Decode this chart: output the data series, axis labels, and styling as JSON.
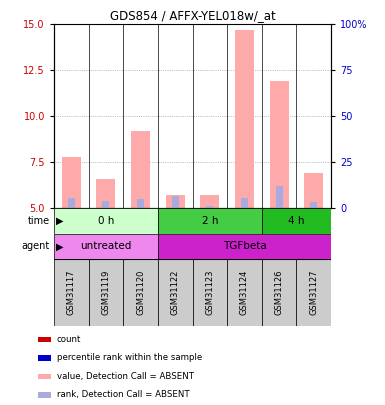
{
  "title": "GDS854 / AFFX-YEL018w/_at",
  "samples": [
    "GSM31117",
    "GSM31119",
    "GSM31120",
    "GSM31122",
    "GSM31123",
    "GSM31124",
    "GSM31126",
    "GSM31127"
  ],
  "pink_bar_tops": [
    7.8,
    6.6,
    9.2,
    5.7,
    5.7,
    14.7,
    11.9,
    6.9
  ],
  "pink_bar_bottoms": [
    5.0,
    5.0,
    5.0,
    5.0,
    5.0,
    5.0,
    5.0,
    5.0
  ],
  "blue_bar_tops": [
    5.55,
    5.4,
    5.5,
    5.65,
    5.1,
    5.55,
    6.2,
    5.35
  ],
  "blue_bar_bottoms": [
    5.0,
    5.0,
    5.0,
    5.0,
    5.0,
    5.0,
    5.0,
    5.0
  ],
  "ylim": [
    5.0,
    15.0
  ],
  "yticks_left": [
    5,
    7.5,
    10,
    12.5,
    15
  ],
  "yticks_right_labels": [
    "0",
    "25",
    "50",
    "75",
    "100%"
  ],
  "ylabel_left_color": "#cc0000",
  "ylabel_right_color": "#0000cc",
  "time_groups": [
    {
      "label": "0 h",
      "start": 0,
      "end": 3,
      "color": "#ccffcc"
    },
    {
      "label": "2 h",
      "start": 3,
      "end": 6,
      "color": "#44cc44"
    },
    {
      "label": "4 h",
      "start": 6,
      "end": 8,
      "color": "#22bb22"
    }
  ],
  "agent_groups": [
    {
      "label": "untreated",
      "start": 0,
      "end": 3,
      "color": "#ee88ee"
    },
    {
      "label": "TGFbeta",
      "start": 3,
      "end": 8,
      "color": "#cc22cc"
    }
  ],
  "bar_width": 0.55,
  "pink_color": "#ffaaaa",
  "blue_color": "#aaaadd",
  "grid_color": "#888888",
  "xticklabel_bg": "#cccccc",
  "legend_items": [
    {
      "color": "#cc0000",
      "label": "count"
    },
    {
      "color": "#0000cc",
      "label": "percentile rank within the sample"
    },
    {
      "color": "#ffaaaa",
      "label": "value, Detection Call = ABSENT"
    },
    {
      "color": "#aaaadd",
      "label": "rank, Detection Call = ABSENT"
    }
  ]
}
